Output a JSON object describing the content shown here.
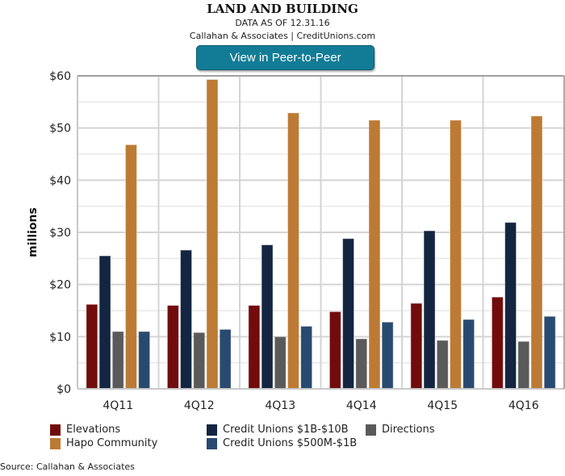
{
  "header": {
    "title": "LAND AND BUILDING",
    "subtitle": "DATA AS OF 12.31.16",
    "attribution": "Callahan & Associates | CreditUnions.com",
    "button_label": "View in Peer-to-Peer",
    "button_color": "#127c96"
  },
  "footer": {
    "source": "Source: Callahan & Associates"
  },
  "chart_data": {
    "type": "bar",
    "title": "LAND AND BUILDING",
    "xlabel": "",
    "ylabel": "millions",
    "ylim": [
      0,
      60
    ],
    "y_major_step": 10,
    "y_minor_step": 5,
    "y_tick_labels": [
      "$0",
      "$10",
      "$20",
      "$30",
      "$40",
      "$50",
      "$60"
    ],
    "grid": true,
    "legend_position": "bottom",
    "categories": [
      "4Q11",
      "4Q12",
      "4Q13",
      "4Q14",
      "4Q15",
      "4Q16"
    ],
    "series": [
      {
        "name": "Elevations",
        "color": "#720c0c",
        "values": [
          16.2,
          16.0,
          16.0,
          14.8,
          16.4,
          17.6
        ]
      },
      {
        "name": "Credit Unions $1B-$10B",
        "color": "#132540",
        "values": [
          25.5,
          26.6,
          27.6,
          28.8,
          30.3,
          31.9
        ]
      },
      {
        "name": "Directions",
        "color": "#5a5a5a",
        "values": [
          11.0,
          10.8,
          10.0,
          9.6,
          9.3,
          9.1
        ]
      },
      {
        "name": "Hapo Community",
        "color": "#bd7a34",
        "values": [
          46.8,
          59.3,
          52.9,
          51.5,
          51.5,
          52.3
        ]
      },
      {
        "name": "Credit Unions $500M-$1B",
        "color": "#294a70",
        "values": [
          11.0,
          11.4,
          12.0,
          12.8,
          13.3,
          13.9
        ]
      }
    ],
    "legend_order": [
      0,
      1,
      2,
      3,
      4
    ]
  }
}
